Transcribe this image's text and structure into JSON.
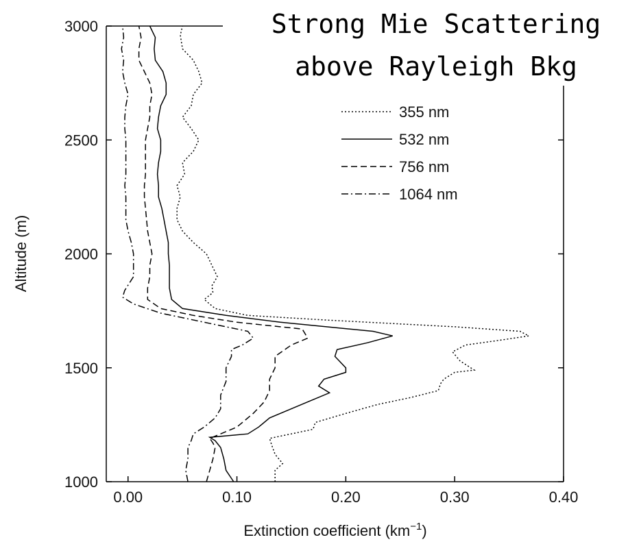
{
  "chart_data": {
    "type": "line",
    "banner": [
      "Strong Mie Scattering",
      "above Rayleigh Bkg"
    ],
    "xlabel": "Extinction coefficient (km",
    "xlabel_sup": "−1",
    "xlabel_close": ")",
    "ylabel": "Altitude (m)",
    "xlim": [
      -0.02,
      0.4
    ],
    "ylim": [
      1000,
      3000
    ],
    "xticks": [
      "0.00",
      "0.10",
      "0.20",
      "0.30",
      "0.40"
    ],
    "yticks": [
      "1000",
      "1500",
      "2000",
      "2500",
      "3000"
    ],
    "legend_position": "top-right",
    "series": [
      {
        "name": "355 nm",
        "dash": "dotted",
        "points": [
          [
            0.135,
            1000
          ],
          [
            0.135,
            1050
          ],
          [
            0.142,
            1080
          ],
          [
            0.135,
            1120
          ],
          [
            0.132,
            1160
          ],
          [
            0.13,
            1190
          ],
          [
            0.15,
            1210
          ],
          [
            0.17,
            1230
          ],
          [
            0.172,
            1260
          ],
          [
            0.2,
            1300
          ],
          [
            0.23,
            1340
          ],
          [
            0.26,
            1370
          ],
          [
            0.285,
            1400
          ],
          [
            0.287,
            1430
          ],
          [
            0.29,
            1450
          ],
          [
            0.3,
            1480
          ],
          [
            0.318,
            1490
          ],
          [
            0.305,
            1530
          ],
          [
            0.298,
            1570
          ],
          [
            0.31,
            1600
          ],
          [
            0.34,
            1620
          ],
          [
            0.368,
            1640
          ],
          [
            0.36,
            1660
          ],
          [
            0.3,
            1680
          ],
          [
            0.18,
            1710
          ],
          [
            0.11,
            1730
          ],
          [
            0.08,
            1760
          ],
          [
            0.07,
            1800
          ],
          [
            0.078,
            1830
          ],
          [
            0.077,
            1860
          ],
          [
            0.082,
            1900
          ],
          [
            0.077,
            1950
          ],
          [
            0.072,
            2000
          ],
          [
            0.06,
            2050
          ],
          [
            0.05,
            2100
          ],
          [
            0.045,
            2150
          ],
          [
            0.045,
            2200
          ],
          [
            0.048,
            2250
          ],
          [
            0.045,
            2300
          ],
          [
            0.052,
            2350
          ],
          [
            0.05,
            2400
          ],
          [
            0.06,
            2450
          ],
          [
            0.065,
            2500
          ],
          [
            0.058,
            2550
          ],
          [
            0.05,
            2600
          ],
          [
            0.058,
            2650
          ],
          [
            0.06,
            2700
          ],
          [
            0.068,
            2750
          ],
          [
            0.065,
            2800
          ],
          [
            0.06,
            2850
          ],
          [
            0.05,
            2900
          ],
          [
            0.048,
            2960
          ],
          [
            0.05,
            3000
          ]
        ]
      },
      {
        "name": "532 nm",
        "dash": "solid",
        "points": [
          [
            0.097,
            1000
          ],
          [
            0.09,
            1050
          ],
          [
            0.088,
            1100
          ],
          [
            0.085,
            1150
          ],
          [
            0.08,
            1180
          ],
          [
            0.075,
            1195
          ],
          [
            0.11,
            1210
          ],
          [
            0.12,
            1240
          ],
          [
            0.13,
            1280
          ],
          [
            0.15,
            1320
          ],
          [
            0.165,
            1350
          ],
          [
            0.185,
            1390
          ],
          [
            0.175,
            1420
          ],
          [
            0.18,
            1450
          ],
          [
            0.2,
            1480
          ],
          [
            0.2,
            1500
          ],
          [
            0.19,
            1550
          ],
          [
            0.192,
            1580
          ],
          [
            0.22,
            1610
          ],
          [
            0.243,
            1640
          ],
          [
            0.225,
            1660
          ],
          [
            0.14,
            1700
          ],
          [
            0.09,
            1730
          ],
          [
            0.05,
            1760
          ],
          [
            0.04,
            1800
          ],
          [
            0.038,
            1850
          ],
          [
            0.038,
            1900
          ],
          [
            0.038,
            1950
          ],
          [
            0.037,
            2000
          ],
          [
            0.037,
            2050
          ],
          [
            0.035,
            2100
          ],
          [
            0.033,
            2150
          ],
          [
            0.031,
            2200
          ],
          [
            0.028,
            2250
          ],
          [
            0.028,
            2300
          ],
          [
            0.027,
            2350
          ],
          [
            0.028,
            2400
          ],
          [
            0.03,
            2450
          ],
          [
            0.03,
            2500
          ],
          [
            0.027,
            2550
          ],
          [
            0.028,
            2600
          ],
          [
            0.03,
            2650
          ],
          [
            0.035,
            2700
          ],
          [
            0.035,
            2750
          ],
          [
            0.032,
            2800
          ],
          [
            0.025,
            2850
          ],
          [
            0.024,
            2900
          ],
          [
            0.025,
            2950
          ],
          [
            0.02,
            3000
          ]
        ]
      },
      {
        "name": "756 nm",
        "dash": "dashed",
        "points": [
          [
            0.072,
            1000
          ],
          [
            0.075,
            1050
          ],
          [
            0.078,
            1100
          ],
          [
            0.08,
            1150
          ],
          [
            0.078,
            1170
          ],
          [
            0.075,
            1190
          ],
          [
            0.085,
            1210
          ],
          [
            0.1,
            1240
          ],
          [
            0.115,
            1300
          ],
          [
            0.125,
            1350
          ],
          [
            0.13,
            1400
          ],
          [
            0.13,
            1450
          ],
          [
            0.135,
            1500
          ],
          [
            0.135,
            1550
          ],
          [
            0.15,
            1600
          ],
          [
            0.165,
            1630
          ],
          [
            0.16,
            1670
          ],
          [
            0.1,
            1700
          ],
          [
            0.06,
            1730
          ],
          [
            0.03,
            1760
          ],
          [
            0.018,
            1800
          ],
          [
            0.018,
            1850
          ],
          [
            0.02,
            1900
          ],
          [
            0.02,
            1950
          ],
          [
            0.022,
            2000
          ],
          [
            0.02,
            2050
          ],
          [
            0.018,
            2100
          ],
          [
            0.017,
            2150
          ],
          [
            0.016,
            2200
          ],
          [
            0.015,
            2250
          ],
          [
            0.015,
            2300
          ],
          [
            0.016,
            2350
          ],
          [
            0.016,
            2400
          ],
          [
            0.016,
            2450
          ],
          [
            0.016,
            2500
          ],
          [
            0.018,
            2550
          ],
          [
            0.02,
            2600
          ],
          [
            0.02,
            2650
          ],
          [
            0.022,
            2700
          ],
          [
            0.02,
            2750
          ],
          [
            0.015,
            2800
          ],
          [
            0.01,
            2850
          ],
          [
            0.01,
            2900
          ],
          [
            0.012,
            2950
          ],
          [
            0.01,
            3000
          ]
        ]
      },
      {
        "name": "1064 nm",
        "dash": "dashdot",
        "points": [
          [
            0.055,
            1000
          ],
          [
            0.053,
            1050
          ],
          [
            0.055,
            1100
          ],
          [
            0.055,
            1150
          ],
          [
            0.058,
            1180
          ],
          [
            0.06,
            1210
          ],
          [
            0.07,
            1240
          ],
          [
            0.08,
            1280
          ],
          [
            0.085,
            1320
          ],
          [
            0.085,
            1380
          ],
          [
            0.09,
            1440
          ],
          [
            0.09,
            1500
          ],
          [
            0.095,
            1550
          ],
          [
            0.095,
            1580
          ],
          [
            0.105,
            1600
          ],
          [
            0.115,
            1630
          ],
          [
            0.11,
            1660
          ],
          [
            0.07,
            1700
          ],
          [
            0.03,
            1740
          ],
          [
            0.005,
            1780
          ],
          [
            -0.005,
            1810
          ],
          [
            -0.003,
            1840
          ],
          [
            0.005,
            1900
          ],
          [
            0.005,
            1950
          ],
          [
            0.005,
            2000
          ],
          [
            0.003,
            2050
          ],
          [
            0.0,
            2100
          ],
          [
            -0.002,
            2150
          ],
          [
            -0.002,
            2200
          ],
          [
            -0.002,
            2250
          ],
          [
            -0.003,
            2300
          ],
          [
            -0.002,
            2350
          ],
          [
            -0.002,
            2400
          ],
          [
            -0.002,
            2450
          ],
          [
            -0.002,
            2500
          ],
          [
            -0.003,
            2550
          ],
          [
            -0.003,
            2600
          ],
          [
            -0.002,
            2650
          ],
          [
            0.0,
            2700
          ],
          [
            -0.003,
            2750
          ],
          [
            -0.005,
            2800
          ],
          [
            -0.004,
            2850
          ],
          [
            -0.006,
            2900
          ],
          [
            -0.004,
            2950
          ],
          [
            -0.005,
            3000
          ]
        ]
      }
    ]
  }
}
